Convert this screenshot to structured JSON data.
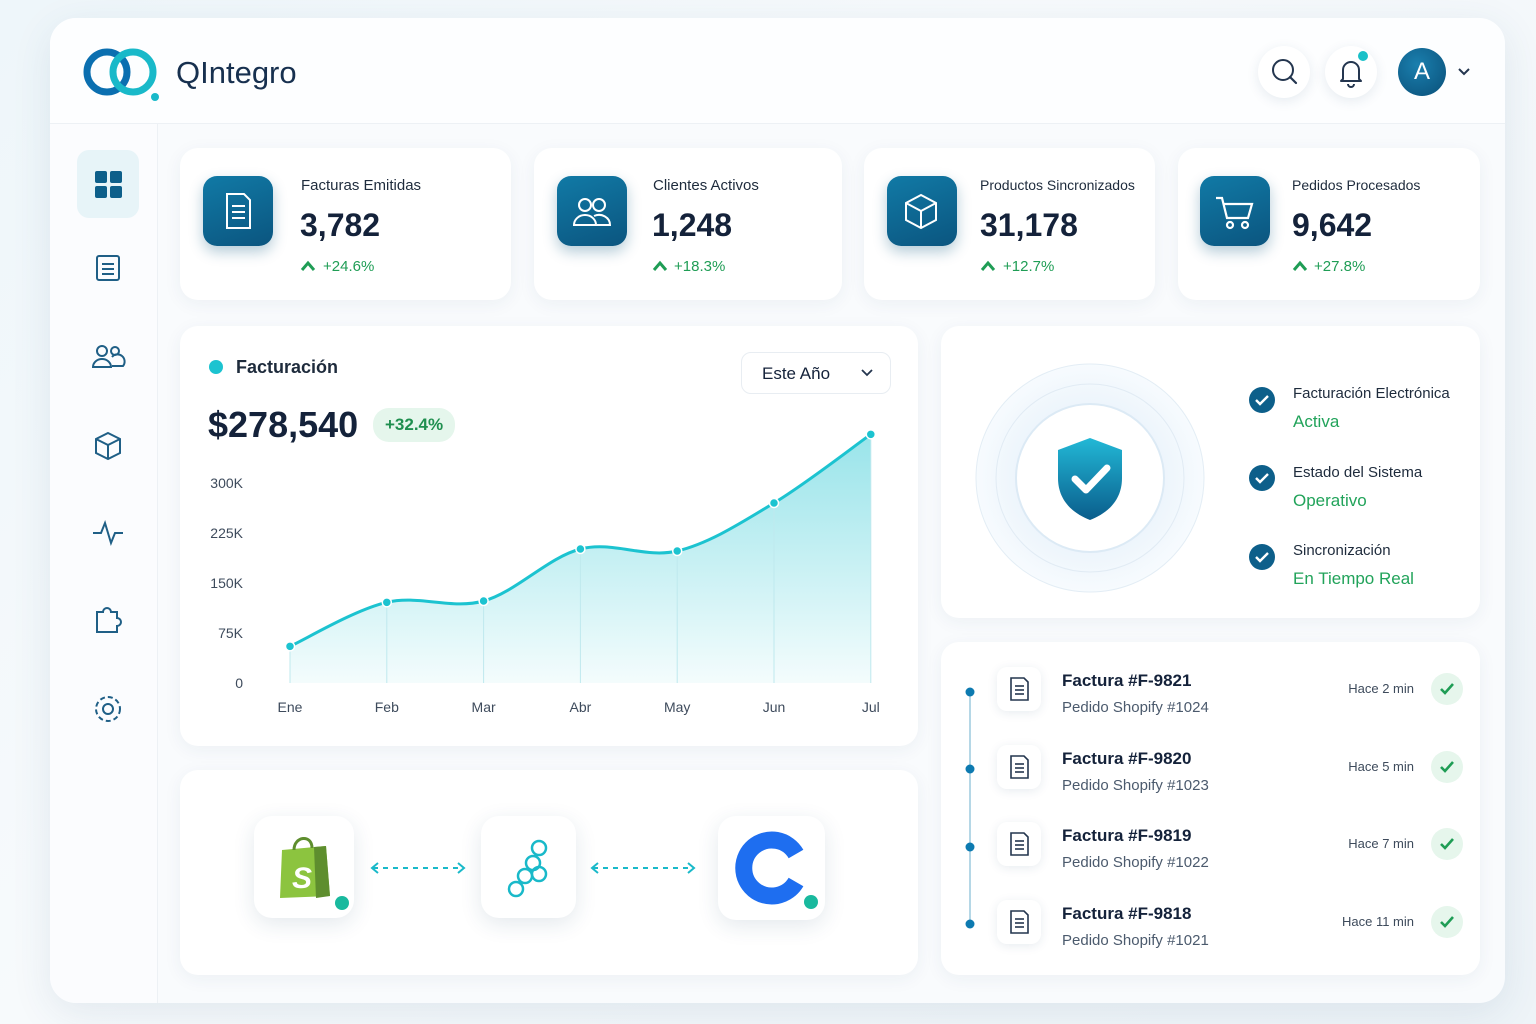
{
  "header": {
    "brand": "QIntegro",
    "avatar": "A"
  },
  "stats": [
    {
      "label": "Facturas Emitidas",
      "value": "3,782",
      "change": "+24.6%"
    },
    {
      "label": "Clientes Activos",
      "value": "1,248",
      "change": "+18.3%"
    },
    {
      "label": "Productos Sincronizados",
      "value": "31,178",
      "change": "+12.7%"
    },
    {
      "label": "Pedidos Procesados",
      "value": "9,642",
      "change": "+27.8%"
    }
  ],
  "chart_data": {
    "type": "area",
    "title": "Facturación",
    "filter": "Este Año",
    "total": "$278,540",
    "change": "+32.4%",
    "categories": [
      "Ene",
      "Feb",
      "Mar",
      "Abr",
      "May",
      "Jun",
      "Jul"
    ],
    "values": [
      55000,
      121000,
      123000,
      201000,
      198000,
      270000,
      373000
    ],
    "color": "#1cc3d0",
    "ylim": [
      0,
      390000
    ],
    "yticks": [
      0,
      {
        "value": 75000,
        "label": "75K"
      },
      {
        "value": 150000,
        "label": "150K"
      },
      {
        "value": 225000,
        "label": "225K"
      },
      {
        "value": 300000,
        "label": "300K"
      }
    ],
    "grid": false
  },
  "status": [
    {
      "label": "Facturación Electrónica",
      "state": "Activa"
    },
    {
      "label": "Estado del Sistema",
      "state": "Operativo"
    },
    {
      "label": "Sincronización",
      "state": "En Tiempo Real"
    }
  ],
  "activity": [
    {
      "title": "Factura #F-9821",
      "subtitle": "Pedido Shopify #1024",
      "time": "Hace 2 min"
    },
    {
      "title": "Factura #F-9820",
      "subtitle": "Pedido Shopify #1023",
      "time": "Hace 5 min"
    },
    {
      "title": "Factura #F-9819",
      "subtitle": "Pedido Shopify #1022",
      "time": "Hace 7 min"
    },
    {
      "title": "Factura #F-9818",
      "subtitle": "Pedido Shopify #1021",
      "time": "Hace 11 min"
    }
  ]
}
